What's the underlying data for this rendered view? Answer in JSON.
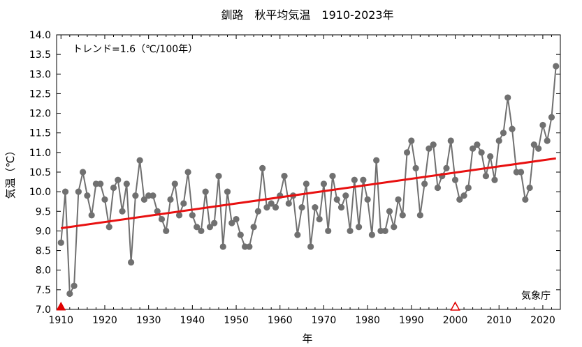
{
  "chart_data": {
    "type": "line",
    "title": "釧路　秋平均気温　1910-2023年",
    "xlabel": "年",
    "ylabel": "気温（℃）",
    "xlim": [
      1909,
      2024
    ],
    "ylim": [
      7.0,
      14.0
    ],
    "xticks": [
      1910,
      1920,
      1930,
      1940,
      1950,
      1960,
      1970,
      1980,
      1990,
      2000,
      2010,
      2020
    ],
    "yticks": [
      7.0,
      7.5,
      8.0,
      8.5,
      9.0,
      9.5,
      10.0,
      10.5,
      11.0,
      11.5,
      12.0,
      12.5,
      13.0,
      13.5,
      14.0
    ],
    "grid": false,
    "trend_label": "トレンド=1.6（℃/100年）",
    "source_label": "気象庁",
    "trend_line": {
      "x": [
        1910,
        2023
      ],
      "y": [
        9.07,
        10.85
      ],
      "color": "#e81010"
    },
    "markers": [
      {
        "x": 1910,
        "style": "filled-triangle",
        "color": "#e00000"
      },
      {
        "x": 2000,
        "style": "open-triangle",
        "color": "#e00000"
      }
    ],
    "series": [
      {
        "color": "#707070",
        "x": [
          1910,
          1911,
          1912,
          1913,
          1914,
          1915,
          1916,
          1917,
          1918,
          1919,
          1920,
          1921,
          1922,
          1923,
          1924,
          1925,
          1926,
          1927,
          1928,
          1929,
          1930,
          1931,
          1932,
          1933,
          1934,
          1935,
          1936,
          1937,
          1938,
          1939,
          1940,
          1941,
          1942,
          1943,
          1944,
          1945,
          1946,
          1947,
          1948,
          1949,
          1950,
          1951,
          1952,
          1953,
          1954,
          1955,
          1956,
          1957,
          1958,
          1959,
          1960,
          1961,
          1962,
          1963,
          1964,
          1965,
          1966,
          1967,
          1968,
          1969,
          1970,
          1971,
          1972,
          1973,
          1974,
          1975,
          1976,
          1977,
          1978,
          1979,
          1980,
          1981,
          1982,
          1983,
          1984,
          1985,
          1986,
          1987,
          1988,
          1989,
          1990,
          1991,
          1992,
          1993,
          1994,
          1995,
          1996,
          1997,
          1998,
          1999,
          2000,
          2001,
          2002,
          2003,
          2004,
          2005,
          2006,
          2007,
          2008,
          2009,
          2010,
          2011,
          2012,
          2013,
          2014,
          2015,
          2016,
          2017,
          2018,
          2019,
          2020,
          2021,
          2022,
          2023
        ],
        "values": [
          8.7,
          10.0,
          7.4,
          7.6,
          10.0,
          10.5,
          9.9,
          9.4,
          10.2,
          10.2,
          9.8,
          9.1,
          10.1,
          10.3,
          9.5,
          10.2,
          8.2,
          9.9,
          10.8,
          9.8,
          9.9,
          9.9,
          9.5,
          9.3,
          9.0,
          9.8,
          10.2,
          9.4,
          9.7,
          10.5,
          9.4,
          9.1,
          9.0,
          10.0,
          9.1,
          9.2,
          10.4,
          8.6,
          10.0,
          9.2,
          9.3,
          8.9,
          8.6,
          8.6,
          9.1,
          9.5,
          10.6,
          9.6,
          9.7,
          9.6,
          9.9,
          10.4,
          9.7,
          9.9,
          8.9,
          9.6,
          10.2,
          8.6,
          9.6,
          9.3,
          10.2,
          9.0,
          10.4,
          9.8,
          9.6,
          9.9,
          9.0,
          10.3,
          9.1,
          10.3,
          9.8,
          8.9,
          10.8,
          9.0,
          9.0,
          9.5,
          9.1,
          9.8,
          9.4,
          11.0,
          11.3,
          10.6,
          9.4,
          10.2,
          11.1,
          11.2,
          10.1,
          10.4,
          10.6,
          11.3,
          10.3,
          9.8,
          9.9,
          10.1,
          11.1,
          11.2,
          11.0,
          10.4,
          10.9,
          10.3,
          11.3,
          11.5,
          12.4,
          11.6,
          10.5,
          10.5,
          9.8,
          10.1,
          11.2,
          11.1,
          11.7,
          11.3,
          11.9,
          13.2
        ]
      }
    ]
  }
}
